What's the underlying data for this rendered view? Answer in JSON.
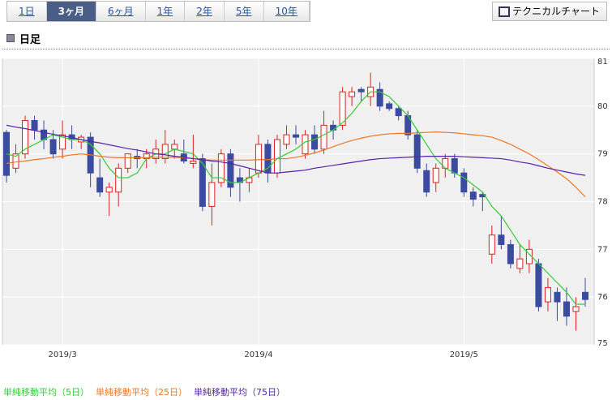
{
  "tabs": [
    "1日",
    "3ヶ月",
    "6ヶ月",
    "1年",
    "2年",
    "5年",
    "10年"
  ],
  "selected_tab": 1,
  "button": "テクニカルチャート",
  "heading": "日足",
  "chart_data": {
    "type": "candlestick",
    "categories": [
      null,
      null,
      null,
      null,
      null,
      null,
      "2019/3",
      null,
      null,
      null,
      null,
      null,
      null,
      null,
      null,
      null,
      null,
      null,
      null,
      null,
      null,
      null,
      null,
      null,
      null,
      null,
      null,
      "2019/4",
      null,
      null,
      null,
      null,
      null,
      null,
      null,
      null,
      null,
      null,
      null,
      null,
      null,
      null,
      null,
      null,
      null,
      null,
      null,
      null,
      null,
      "2019/5",
      null,
      null,
      null,
      null,
      null,
      null,
      null,
      null,
      null,
      null,
      null,
      null,
      null
    ],
    "open": [
      79.45,
      78.7,
      79.0,
      79.7,
      79.5,
      79.3,
      79.1,
      79.4,
      79.25,
      79.35,
      78.5,
      78.2,
      78.2,
      78.7,
      78.95,
      78.9,
      78.9,
      78.9,
      79.1,
      79.0,
      78.8,
      78.9,
      77.9,
      78.4,
      79.0,
      78.5,
      78.4,
      78.6,
      79.2,
      78.6,
      79.2,
      79.4,
      79.0,
      79.4,
      79.1,
      79.6,
      79.6,
      80.2,
      80.35,
      80.2,
      80.35,
      80.05,
      79.95,
      79.8,
      79.4,
      78.65,
      78.4,
      78.7,
      78.9,
      78.6,
      78.2,
      78.15,
      76.9,
      77.3,
      77.1,
      76.6,
      76.7,
      76.7,
      75.9,
      76.1,
      75.9,
      75.7,
      76.1
    ],
    "high": [
      79.5,
      79.2,
      79.8,
      79.8,
      79.7,
      79.5,
      79.7,
      79.6,
      79.4,
      79.45,
      78.9,
      78.4,
      78.8,
      79.0,
      79.1,
      79.1,
      79.3,
      79.5,
      79.3,
      79.3,
      79.4,
      79.0,
      78.8,
      79.1,
      79.1,
      78.7,
      78.7,
      79.4,
      79.3,
      79.4,
      79.6,
      79.6,
      79.5,
      79.6,
      79.9,
      79.7,
      80.4,
      80.4,
      80.4,
      80.7,
      80.5,
      80.1,
      80.0,
      79.9,
      79.5,
      78.8,
      78.8,
      79.0,
      79.0,
      78.7,
      78.3,
      78.2,
      77.5,
      77.7,
      77.2,
      77.1,
      77.2,
      76.8,
      76.4,
      76.2,
      76.2,
      76.0,
      76.4
    ],
    "low": [
      78.4,
      78.6,
      78.9,
      79.3,
      79.1,
      78.9,
      78.9,
      79.1,
      79.1,
      78.3,
      78.1,
      77.7,
      77.9,
      78.6,
      78.7,
      78.7,
      78.8,
      78.8,
      78.9,
      78.8,
      78.7,
      77.8,
      77.5,
      78.3,
      78.1,
      78.0,
      78.2,
      78.5,
      78.4,
      78.5,
      79.1,
      79.2,
      78.9,
      79.0,
      79.0,
      79.3,
      79.5,
      80.0,
      80.1,
      80.0,
      79.9,
      79.9,
      79.7,
      79.3,
      78.6,
      78.1,
      78.2,
      78.5,
      78.5,
      78.1,
      77.9,
      77.8,
      76.7,
      77.0,
      76.6,
      76.5,
      76.5,
      75.7,
      75.7,
      75.5,
      75.4,
      75.3,
      75.8
    ],
    "close": [
      78.55,
      79.0,
      79.7,
      79.5,
      79.3,
      79.0,
      79.4,
      79.3,
      79.35,
      78.6,
      78.2,
      78.3,
      78.7,
      79.0,
      78.9,
      79.0,
      79.1,
      79.2,
      79.2,
      78.85,
      78.85,
      77.9,
      78.4,
      79.0,
      78.3,
      78.4,
      78.5,
      79.2,
      78.6,
      79.3,
      79.4,
      79.35,
      79.4,
      79.1,
      79.6,
      79.5,
      80.3,
      80.3,
      80.3,
      80.4,
      80.0,
      79.95,
      79.8,
      79.4,
      78.7,
      78.2,
      78.7,
      78.9,
      78.6,
      78.2,
      78.05,
      78.1,
      77.3,
      77.1,
      76.7,
      76.8,
      77.0,
      75.8,
      76.2,
      75.9,
      75.6,
      75.8,
      75.95
    ],
    "up_color": "#e02020",
    "down_color": "#3b4ba0",
    "series": [
      {
        "name": "単純移動平均（5日）",
        "color": "#33cc33",
        "values": [
          79.0,
          78.95,
          79.1,
          79.2,
          79.3,
          79.4,
          79.35,
          79.3,
          79.3,
          79.2,
          79.0,
          78.7,
          78.5,
          78.5,
          78.6,
          78.9,
          79.0,
          79.0,
          79.1,
          79.05,
          79.0,
          78.8,
          78.5,
          78.5,
          78.4,
          78.4,
          78.5,
          78.6,
          78.7,
          78.9,
          79.0,
          79.1,
          79.25,
          79.3,
          79.4,
          79.5,
          79.65,
          79.85,
          80.1,
          80.3,
          80.3,
          80.2,
          80.0,
          79.8,
          79.5,
          79.2,
          78.9,
          78.7,
          78.6,
          78.5,
          78.35,
          78.2,
          77.9,
          77.7,
          77.4,
          77.1,
          76.9,
          76.7,
          76.5,
          76.3,
          76.1,
          75.85,
          75.85
        ]
      },
      {
        "name": "単純移動平均（25日）",
        "color": "#ee7722",
        "values": [
          78.8,
          78.83,
          78.85,
          78.88,
          78.9,
          78.93,
          78.95,
          78.98,
          79.0,
          78.98,
          78.95,
          78.93,
          78.92,
          78.92,
          78.92,
          78.92,
          78.93,
          78.93,
          78.93,
          78.92,
          78.9,
          78.88,
          78.87,
          78.87,
          78.87,
          78.87,
          78.87,
          78.88,
          78.88,
          78.9,
          78.9,
          78.93,
          78.97,
          79.02,
          79.08,
          79.15,
          79.22,
          79.28,
          79.33,
          79.37,
          79.4,
          79.42,
          79.43,
          79.43,
          79.44,
          79.45,
          79.46,
          79.45,
          79.44,
          79.42,
          79.4,
          79.38,
          79.35,
          79.28,
          79.2,
          79.1,
          79.0,
          78.88,
          78.75,
          78.62,
          78.48,
          78.3,
          78.1
        ]
      },
      {
        "name": "単純移動平均（75日）",
        "color": "#5522aa",
        "values": [
          79.6,
          79.56,
          79.53,
          79.49,
          79.45,
          79.41,
          79.38,
          79.34,
          79.3,
          79.26,
          79.23,
          79.19,
          79.15,
          79.11,
          79.08,
          79.04,
          79.0,
          78.98,
          78.95,
          78.93,
          78.9,
          78.88,
          78.85,
          78.83,
          78.8,
          78.75,
          78.7,
          78.65,
          78.6,
          78.6,
          78.62,
          78.64,
          78.66,
          78.7,
          78.73,
          78.76,
          78.79,
          78.82,
          78.85,
          78.88,
          78.9,
          78.91,
          78.92,
          78.93,
          78.94,
          78.95,
          78.95,
          78.95,
          78.95,
          78.94,
          78.93,
          78.92,
          78.91,
          78.9,
          78.87,
          78.83,
          78.8,
          78.75,
          78.7,
          78.66,
          78.62,
          78.58,
          78.55
        ]
      }
    ],
    "ylim": [
      75,
      81
    ],
    "yticks": [
      75,
      76,
      77,
      78,
      79,
      80,
      81
    ],
    "grid": true
  }
}
